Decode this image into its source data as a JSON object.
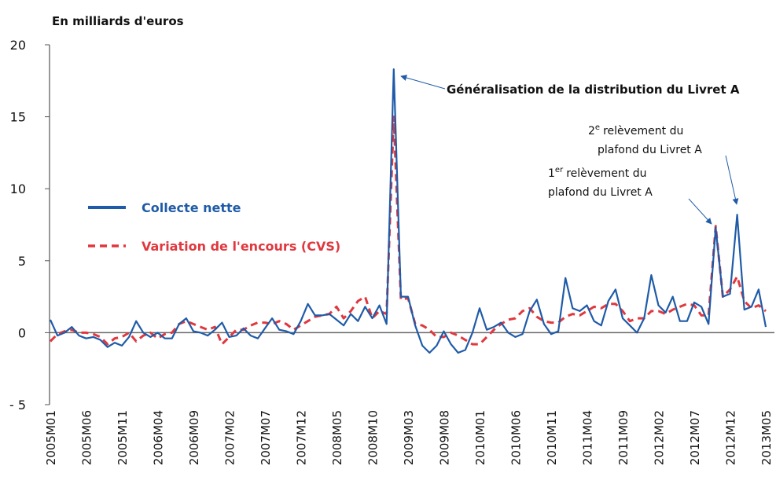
{
  "chart_data": {
    "type": "line",
    "y_axis_title": "En milliards d'euros",
    "categories": [
      "2005M01",
      null,
      null,
      null,
      null,
      "2005M06",
      null,
      null,
      null,
      null,
      "2005M11",
      null,
      null,
      null,
      null,
      "2006M04",
      null,
      null,
      null,
      null,
      "2006M09",
      null,
      null,
      null,
      null,
      "2007M02",
      null,
      null,
      null,
      null,
      "2007M07",
      null,
      null,
      null,
      null,
      "2007M12",
      null,
      null,
      null,
      null,
      "2008M05",
      null,
      null,
      null,
      null,
      "2008M10",
      null,
      null,
      null,
      null,
      "2009M03",
      null,
      null,
      null,
      null,
      "2009M08",
      null,
      null,
      null,
      null,
      "2010M01",
      null,
      null,
      null,
      null,
      "2010M06",
      null,
      null,
      null,
      null,
      "2010M11",
      null,
      null,
      null,
      null,
      "2011M04",
      null,
      null,
      null,
      null,
      "2011M09",
      null,
      null,
      null,
      null,
      "2012M02",
      null,
      null,
      null,
      null,
      "2012M07",
      null,
      null,
      null,
      null,
      "2012M12",
      null,
      null,
      null,
      null,
      "2013M05"
    ],
    "series": [
      {
        "name": "Collecte nette",
        "color": "#1f5ba8",
        "dash": false,
        "values": [
          0.9,
          -0.2,
          0.0,
          0.4,
          -0.2,
          -0.4,
          -0.3,
          -0.5,
          -1.0,
          -0.7,
          -0.9,
          -0.3,
          0.8,
          0.0,
          -0.3,
          0.0,
          -0.4,
          -0.4,
          0.6,
          1.0,
          0.1,
          0.0,
          -0.2,
          0.2,
          0.7,
          -0.3,
          -0.2,
          0.3,
          -0.2,
          -0.4,
          0.3,
          1.0,
          0.2,
          0.1,
          -0.1,
          0.8,
          2.0,
          1.2,
          1.2,
          1.3,
          0.9,
          0.5,
          1.3,
          0.8,
          1.8,
          1.0,
          1.9,
          0.6,
          18.3,
          2.5,
          2.5,
          0.5,
          -0.9,
          -1.4,
          -0.9,
          0.1,
          -0.8,
          -1.4,
          -1.2,
          0.0,
          1.7,
          0.2,
          0.4,
          0.7,
          0.0,
          -0.3,
          -0.1,
          1.5,
          2.3,
          0.6,
          -0.1,
          0.1,
          3.8,
          1.7,
          1.5,
          1.9,
          0.8,
          0.5,
          2.2,
          3.0,
          1.0,
          0.5,
          0.0,
          1.0,
          4.0,
          1.9,
          1.4,
          2.5,
          0.8,
          0.8,
          2.1,
          1.8,
          0.6,
          7.3,
          2.5,
          2.7,
          8.2,
          1.6,
          1.8,
          3.0,
          0.4
        ]
      },
      {
        "name": "Variation de l'encours (CVS)",
        "color": "#e0383e",
        "dash": true,
        "values": [
          -0.6,
          -0.1,
          0.1,
          0.2,
          0.0,
          0.0,
          -0.1,
          -0.3,
          -0.8,
          -0.4,
          -0.3,
          0.0,
          -0.6,
          -0.2,
          0.0,
          -0.4,
          -0.1,
          0.0,
          0.6,
          0.8,
          0.6,
          0.4,
          0.2,
          0.4,
          -0.8,
          -0.3,
          0.2,
          0.2,
          0.5,
          0.7,
          0.7,
          0.6,
          0.8,
          0.6,
          0.2,
          0.5,
          0.8,
          1.1,
          1.2,
          1.3,
          1.8,
          1.0,
          1.5,
          2.2,
          2.5,
          1.0,
          1.5,
          1.3,
          15.0,
          2.3,
          2.4,
          0.6,
          0.5,
          0.2,
          -0.3,
          -0.3,
          0.0,
          -0.2,
          -0.5,
          -0.8,
          -0.8,
          -0.3,
          0.2,
          0.6,
          0.9,
          1.0,
          1.5,
          1.7,
          1.1,
          0.8,
          0.7,
          0.7,
          1.1,
          1.3,
          1.2,
          1.5,
          1.8,
          1.7,
          2.0,
          2.0,
          1.5,
          0.8,
          1.0,
          1.0,
          1.5,
          1.5,
          1.3,
          1.6,
          1.8,
          2.0,
          1.9,
          1.2,
          1.2,
          7.4,
          2.5,
          3.0,
          3.9,
          2.2,
          1.7,
          1.9,
          1.5
        ]
      }
    ],
    "ylim": [
      -5,
      20
    ],
    "yticks": [
      {
        "value": -5,
        "label": "- 5"
      },
      0,
      5,
      10,
      15,
      20
    ],
    "grid": false,
    "annotations": [
      {
        "line1": "Généralisation de la distribution du Livret A"
      },
      {
        "num": "2",
        "sup": "e",
        "line1": "relèvement du",
        "line2": "plafond du Livret A"
      },
      {
        "num": "1",
        "sup": "er",
        "line1": "relèvement du",
        "line2": "plafond du Livret A"
      }
    ]
  }
}
